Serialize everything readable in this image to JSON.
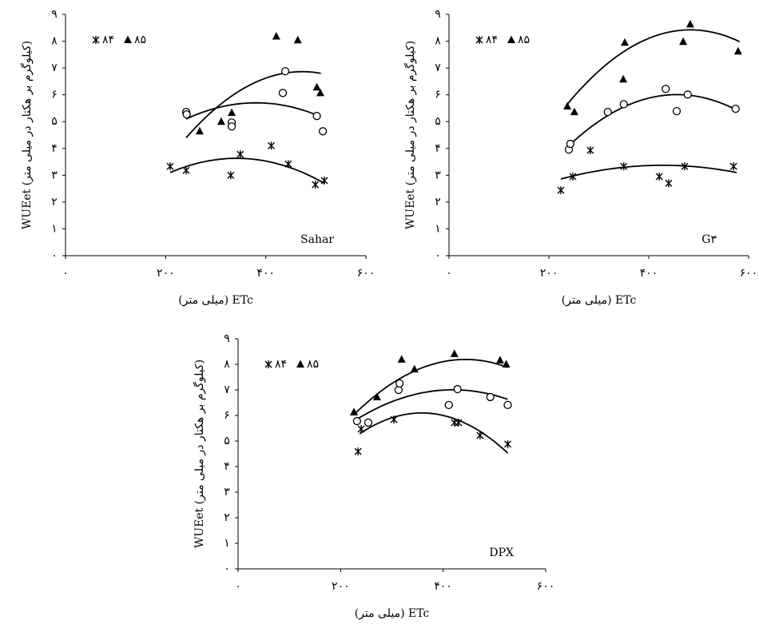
{
  "chart_data": [
    {
      "type": "scatter",
      "annotation": "Sahar",
      "xlabel": "ETc (میلی متر)",
      "ylabel": "WUEet (کیلوگرم بر هکتار در میلی متر)",
      "xlim": [
        0,
        600
      ],
      "ylim": [
        0,
        9
      ],
      "xticks": [
        {
          "value": 0,
          "label": "۰"
        },
        {
          "value": 200,
          "label": "۲۰۰"
        },
        {
          "value": 400,
          "label": "۴۰۰"
        },
        {
          "value": 600,
          "label": "۶۰۰"
        }
      ],
      "yticks": [
        {
          "value": 0,
          "label": "۰"
        },
        {
          "value": 1,
          "label": "۱"
        },
        {
          "value": 2,
          "label": "۲"
        },
        {
          "value": 3,
          "label": "۳"
        },
        {
          "value": 4,
          "label": "۴"
        },
        {
          "value": 5,
          "label": "۵"
        },
        {
          "value": 6,
          "label": "۶"
        },
        {
          "value": 7,
          "label": "۷"
        },
        {
          "value": 8,
          "label": "۸"
        },
        {
          "value": 9,
          "label": "۹"
        }
      ],
      "series": [
        {
          "name": "۸۴",
          "marker": "asterisk",
          "color": "#000000",
          "x": [
            209,
            241,
            330,
            349,
            411,
            445,
            499,
            517
          ],
          "values": [
            3.33,
            3.18,
            3.0,
            3.78,
            4.1,
            3.42,
            2.65,
            2.8
          ],
          "fit": {
            "x": [
              209,
              348,
              517
            ],
            "values": [
              3.1,
              3.63,
              2.7
            ]
          }
        },
        {
          "name": "۸۵",
          "marker": "triangle",
          "color": "#000000",
          "x": [
            268,
            311,
            332,
            421,
            464,
            502,
            509
          ],
          "values": [
            4.64,
            5.0,
            5.33,
            8.18,
            8.04,
            6.28,
            6.07
          ],
          "fit": {
            "x": [
              241,
              435,
              510
            ],
            "values": [
              4.4,
              6.8,
              6.8
            ]
          }
        },
        {
          "marker": "circle",
          "color": "#000000",
          "x": [
            241,
            242,
            332,
            332,
            434,
            439,
            502,
            514
          ],
          "values": [
            5.36,
            5.27,
            4.97,
            4.82,
            6.07,
            6.88,
            5.21,
            4.64
          ],
          "fit": {
            "x": [
              241,
              380,
              508
            ],
            "values": [
              5.1,
              5.7,
              5.2
            ]
          }
        }
      ]
    },
    {
      "type": "scatter",
      "annotation": "G۳",
      "xlabel": "ETc (میلی متر)",
      "ylabel": "WUEet (کیلوگرم بر هکتار در میلی متر)",
      "xlim": [
        0,
        600
      ],
      "ylim": [
        0,
        9
      ],
      "xticks": [
        {
          "value": 0,
          "label": "۰"
        },
        {
          "value": 200,
          "label": "۲۰۰"
        },
        {
          "value": 400,
          "label": "۴۰۰"
        },
        {
          "value": 600,
          "label": "۶۰۰"
        }
      ],
      "yticks": [
        {
          "value": 0,
          "label": "۰"
        },
        {
          "value": 1,
          "label": "۱"
        },
        {
          "value": 2,
          "label": "۲"
        },
        {
          "value": 3,
          "label": "۳"
        },
        {
          "value": 4,
          "label": "۴"
        },
        {
          "value": 5,
          "label": "۵"
        },
        {
          "value": 6,
          "label": "۶"
        },
        {
          "value": 7,
          "label": "۷"
        },
        {
          "value": 8,
          "label": "۸"
        },
        {
          "value": 9,
          "label": "۹"
        }
      ],
      "series": [
        {
          "name": "۸۴",
          "marker": "asterisk",
          "color": "#000000",
          "x": [
            224,
            248,
            283,
            350,
            421,
            440,
            472,
            570
          ],
          "values": [
            2.44,
            2.95,
            3.93,
            3.33,
            2.95,
            2.7,
            3.33,
            3.33
          ],
          "fit": {
            "x": [
              224,
              397,
              576
            ],
            "values": [
              2.86,
              3.36,
              3.1
            ]
          }
        },
        {
          "name": "۸۵",
          "marker": "triangle",
          "color": "#000000",
          "x": [
            237,
            251,
            352,
            349,
            469,
            483,
            579
          ],
          "values": [
            5.57,
            5.36,
            7.95,
            6.58,
            7.98,
            8.63,
            7.62
          ],
          "fit": {
            "x": [
              237,
              493,
              582
            ],
            "values": [
              5.65,
              8.42,
              7.98
            ]
          }
        },
        {
          "marker": "circle",
          "color": "#000000",
          "x": [
            240,
            243,
            318,
            350,
            434,
            456,
            478,
            574
          ],
          "values": [
            3.96,
            4.17,
            5.36,
            5.65,
            6.22,
            5.39,
            6.01,
            5.48
          ],
          "fit": {
            "x": [
              237,
              419,
              574
            ],
            "values": [
              4.05,
              5.95,
              5.45
            ]
          }
        }
      ]
    },
    {
      "type": "scatter",
      "annotation": "DPX",
      "xlabel": "ETc (میلی متر)",
      "ylabel": "WUEet (کیلوگرم بر هکتار در میلی متر)",
      "xlim": [
        0,
        600
      ],
      "ylim": [
        0,
        9
      ],
      "xticks": [
        {
          "value": 0,
          "label": "۰"
        },
        {
          "value": 200,
          "label": "۲۰۰"
        },
        {
          "value": 400,
          "label": "۴۰۰"
        },
        {
          "value": 600,
          "label": "۶۰۰"
        }
      ],
      "yticks": [
        {
          "value": 0,
          "label": "۰"
        },
        {
          "value": 1,
          "label": "۱"
        },
        {
          "value": 2,
          "label": "۲"
        },
        {
          "value": 3,
          "label": "۳"
        },
        {
          "value": 4,
          "label": "۴"
        },
        {
          "value": 5,
          "label": "۵"
        },
        {
          "value": 6,
          "label": "۶"
        },
        {
          "value": 7,
          "label": "۷"
        },
        {
          "value": 8,
          "label": "۸"
        },
        {
          "value": 9,
          "label": "۹"
        }
      ],
      "series": [
        {
          "name": "۸۴",
          "marker": "asterisk",
          "color": "#000000",
          "x": [
            234,
            240,
            304,
            422,
            430,
            472,
            526
          ],
          "values": [
            4.59,
            5.47,
            5.84,
            5.72,
            5.72,
            5.22,
            4.88
          ],
          "fit": {
            "x": [
              237,
              346,
              526
            ],
            "values": [
              5.28,
              6.09,
              4.53
            ]
          }
        },
        {
          "name": "۸۵",
          "marker": "triangle",
          "color": "#000000",
          "x": [
            226,
            271,
            319,
            344,
            422,
            511,
            523
          ],
          "values": [
            6.13,
            6.72,
            8.19,
            7.81,
            8.41,
            8.16,
            8.0
          ],
          "fit": {
            "x": [
              226,
              439,
              526
            ],
            "values": [
              6.03,
              8.19,
              7.88
            ]
          }
        },
        {
          "marker": "circle",
          "color": "#000000",
          "x": [
            232,
            254,
            313,
            315,
            411,
            428,
            492,
            526
          ],
          "values": [
            5.78,
            5.72,
            7.0,
            7.25,
            6.41,
            7.03,
            6.72,
            6.41
          ],
          "fit": {
            "x": [
              226,
              408,
              526
            ],
            "values": [
              5.78,
              7.0,
              6.63
            ]
          }
        }
      ]
    }
  ]
}
